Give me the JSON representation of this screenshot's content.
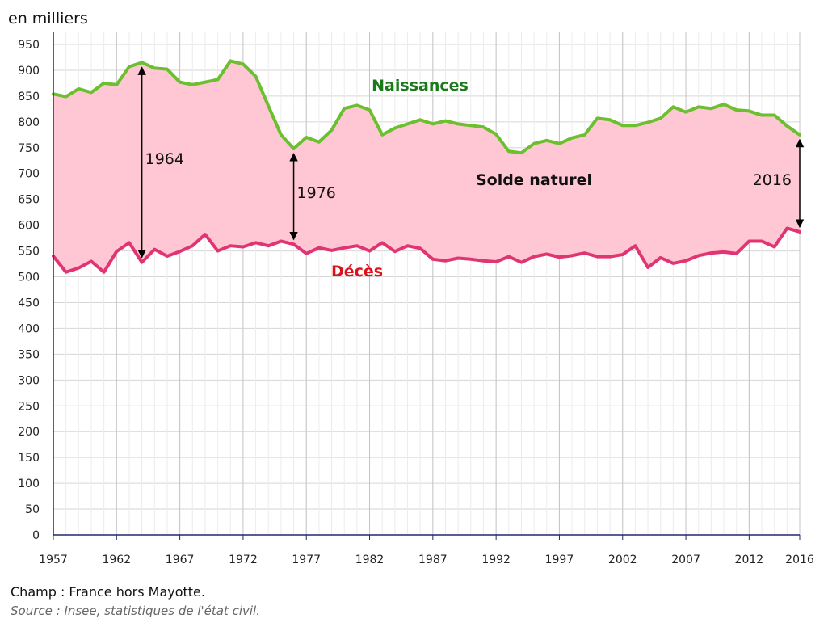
{
  "chart_data": {
    "type": "line",
    "unit_label": "en milliers",
    "x": [
      1957,
      1958,
      1959,
      1960,
      1961,
      1962,
      1963,
      1964,
      1965,
      1966,
      1967,
      1968,
      1969,
      1970,
      1971,
      1972,
      1973,
      1974,
      1975,
      1976,
      1977,
      1978,
      1979,
      1980,
      1981,
      1982,
      1983,
      1984,
      1985,
      1986,
      1987,
      1988,
      1989,
      1990,
      1991,
      1992,
      1993,
      1994,
      1995,
      1996,
      1997,
      1998,
      1999,
      2000,
      2001,
      2002,
      2003,
      2004,
      2005,
      2006,
      2007,
      2008,
      2009,
      2010,
      2011,
      2012,
      2013,
      2014,
      2015,
      2016
    ],
    "x_ticks": [
      "1957",
      "1962",
      "1967",
      "1972",
      "1977",
      "1982",
      "1987",
      "1992",
      "1997",
      "2002",
      "2007",
      "2012",
      "2016"
    ],
    "y_ticks": [
      "0",
      "50",
      "100",
      "150",
      "200",
      "250",
      "300",
      "350",
      "400",
      "450",
      "500",
      "550",
      "600",
      "650",
      "700",
      "750",
      "800",
      "850",
      "900",
      "950"
    ],
    "ylim": [
      0,
      950
    ],
    "grid": true,
    "series": [
      {
        "name": "Naissances",
        "color": "#6cbf2e",
        "label_color": "#1a7a1a",
        "values": [
          854,
          849,
          864,
          857,
          875,
          872,
          907,
          915,
          904,
          902,
          877,
          872,
          877,
          882,
          918,
          912,
          888,
          831,
          775,
          748,
          770,
          761,
          784,
          826,
          832,
          823,
          775,
          788,
          796,
          804,
          796,
          802,
          796,
          793,
          790,
          776,
          743,
          740,
          758,
          764,
          758,
          769,
          775,
          807,
          804,
          793,
          793,
          799,
          807,
          829,
          819,
          829,
          826,
          834,
          823,
          821,
          813,
          813,
          792,
          775
        ]
      },
      {
        "name": "Décès",
        "color": "#e03572",
        "label_color": "#e0101a",
        "values": [
          540,
          509,
          517,
          530,
          509,
          549,
          566,
          528,
          553,
          540,
          549,
          560,
          582,
          550,
          560,
          558,
          566,
          560,
          569,
          563,
          545,
          556,
          551,
          556,
          560,
          550,
          566,
          549,
          560,
          555,
          534,
          531,
          536,
          534,
          531,
          529,
          539,
          528,
          539,
          544,
          538,
          541,
          546,
          539,
          539,
          543,
          560,
          518,
          537,
          526,
          531,
          541,
          546,
          548,
          545,
          569,
          569,
          558,
          594,
          587
        ]
      }
    ],
    "fill_color": "#ffc6d3",
    "area_label": "Solde naturel",
    "annotations": [
      {
        "year": 1964,
        "label": "1964"
      },
      {
        "year": 1976,
        "label": "1976"
      },
      {
        "year": 2016,
        "label": "2016"
      }
    ]
  },
  "footer": {
    "champ": "Champ : France hors Mayotte.",
    "source": "Source : Insee, statistiques de l'état civil."
  }
}
